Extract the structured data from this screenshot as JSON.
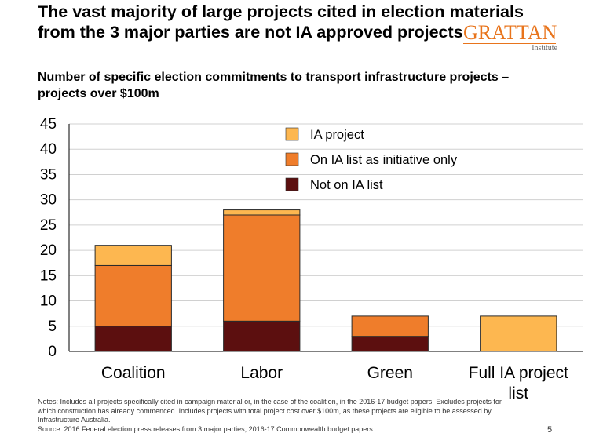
{
  "title": "The vast majority of large projects cited in election materials from the 3 major parties are not IA approved projects",
  "logo": {
    "name": "GRATTAN",
    "sub": "Institute"
  },
  "subtitle": "Number of specific election commitments to transport infrastructure projects – projects over $100m",
  "notes": {
    "line1": "Notes: Includes all projects specifically cited in campaign material or, in the case of the coalition, in the 2016-17 budget papers. Excludes projects for which construction has already commenced. Includes projects with total project cost over $100m, as these projects are eligible to be assessed by Infrastructure Australia.",
    "line2": "Source: 2016 Federal election press releases from 3 major parties, 2016-17 Commonwealth budget papers"
  },
  "page_number": "5",
  "chart_data": {
    "type": "bar",
    "stacked": true,
    "categories": [
      "Coalition",
      "Labor",
      "Green",
      "Full IA project list"
    ],
    "series": [
      {
        "name": "Not on IA list",
        "color": "#5C0F0F",
        "values": [
          5,
          6,
          3,
          0
        ]
      },
      {
        "name": "On IA list as initiative only",
        "color": "#EF7D2B",
        "values": [
          12,
          21,
          4,
          0
        ]
      },
      {
        "name": "IA project",
        "color": "#FDB750",
        "values": [
          4,
          1,
          0,
          7
        ]
      }
    ],
    "legend_order": [
      "IA project",
      "On IA list as initiative only",
      "Not on IA list"
    ],
    "ylim": [
      0,
      45
    ],
    "yticks": [
      0,
      5,
      10,
      15,
      20,
      25,
      30,
      35,
      40,
      45
    ],
    "grid": true,
    "legend_position": "top-right"
  }
}
